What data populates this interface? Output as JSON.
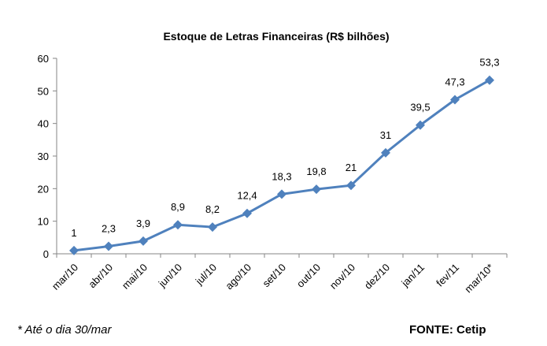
{
  "chart_data": {
    "type": "line",
    "title": "Estoque de Letras Financeiras (R$ bilhões)",
    "categories": [
      "mar/10",
      "abr/10",
      "mai/10",
      "jun/10",
      "jul/10",
      "ago/10",
      "set/10",
      "out/10",
      "nov/10",
      "dez/10",
      "jan/11",
      "fev/11",
      "mar/10*"
    ],
    "values": [
      1,
      2.3,
      3.9,
      8.9,
      8.2,
      12.4,
      18.3,
      19.8,
      21,
      31,
      39.5,
      47.3,
      53.3
    ],
    "data_labels": [
      "1",
      "2,3",
      "3,9",
      "8,9",
      "8,2",
      "12,4",
      "18,3",
      "19,8",
      "21",
      "31",
      "39,5",
      "47,3",
      "53,3"
    ],
    "yticks": [
      "0",
      "10",
      "20",
      "30",
      "40",
      "50",
      "60"
    ],
    "ylim": [
      0,
      60
    ],
    "xlabel": "",
    "ylabel": "",
    "grid": false,
    "legend": "none",
    "marker": "diamond",
    "color": "#4F81BD"
  },
  "footer": {
    "note": "* Até o dia 30/mar",
    "source": "FONTE: Cetip"
  }
}
